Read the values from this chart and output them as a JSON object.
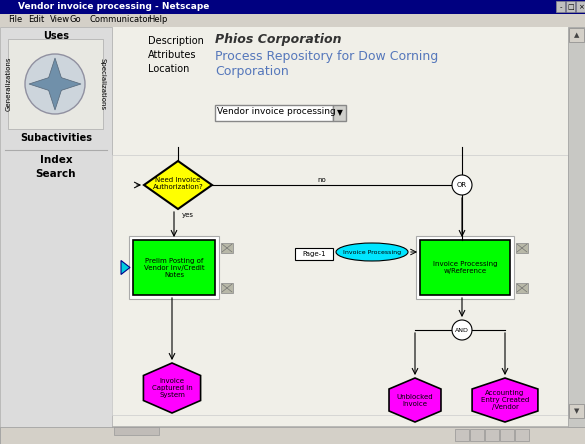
{
  "title": "Vendor invoice processing - Netscape",
  "bg_color": "#d4d0c8",
  "phios_title": "Phios Corporation",
  "subtitle_line1": "Process Repository for Dow Corning",
  "subtitle_line2": "Corporation",
  "nav_top": [
    "Description",
    "Attributes",
    "Location"
  ],
  "dropdown_label": "Vendor invoice processing",
  "diamond_label": "Need Invoice\nAuthorization?",
  "diamond_color": "#ffff00",
  "green_box1_label": "Prelim Posting of\nVendor Inv/Credit\nNotes",
  "green_box2_label": "Invoice Processing\nw/Reference",
  "green_color": "#00ff00",
  "magenta_hex1": "Invoice\nCaptured in\nSystem",
  "magenta_hex2": "Unblocked\nInvoice",
  "magenta_hex3": "Accounting\nEntry Created\n/Vendor",
  "magenta_color": "#ff00ff",
  "cyan_ellipse_label": "Invoice Processing",
  "cyan_color": "#00e5ff",
  "page_label": "Page-1",
  "or_label": "OR",
  "and_label": "AND",
  "yes_label": "yes",
  "no_label": "no",
  "titlebar_bg": "#000080",
  "menubar_bg": "#d4d0c8",
  "content_bg": "#f0efe8",
  "nav_panel_bg": "#dcdcdc",
  "diagram_bg": "#f0efe8",
  "scrollbar_bg": "#c8c8c4",
  "statusbar_bg": "#d4d0c8",
  "subtitle_color": "#5577bb",
  "nav_link_color": "#000080"
}
